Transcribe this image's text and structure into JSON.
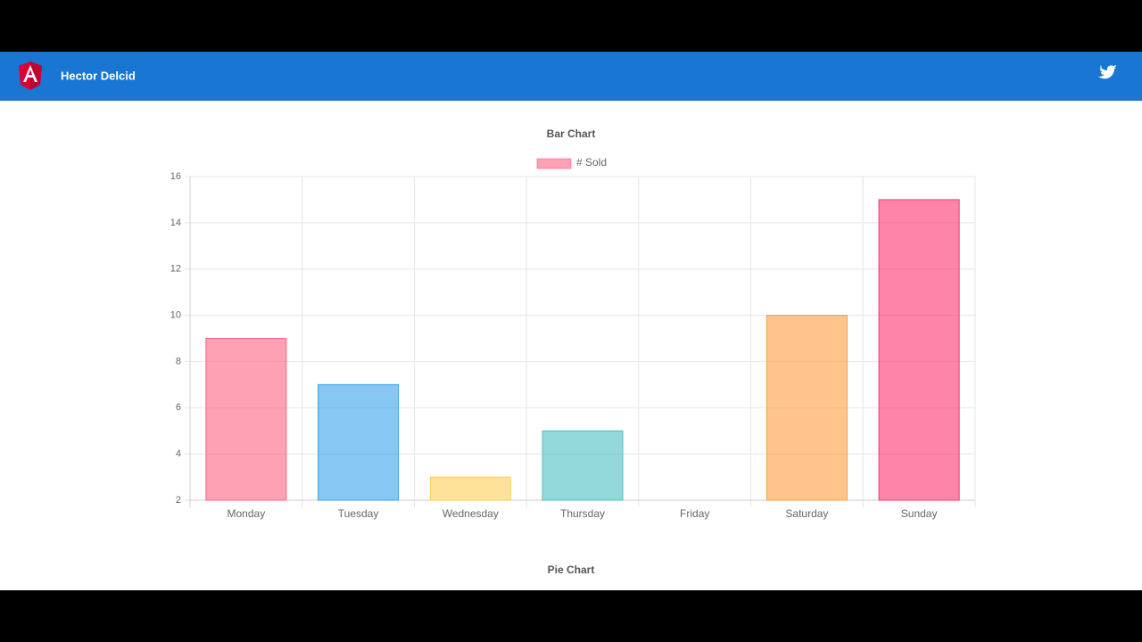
{
  "header": {
    "title": "Hector Delcid"
  },
  "chart_data": [
    {
      "type": "bar",
      "title": "Bar Chart",
      "categories": [
        "Monday",
        "Tuesday",
        "Wednesday",
        "Thursday",
        "Friday",
        "Saturday",
        "Sunday"
      ],
      "series": [
        {
          "name": "# Sold",
          "colors": [
            "rgba(255,99,132,0.6)",
            "rgba(54,162,235,0.6)",
            "rgba(255,206,86,0.6)",
            "rgba(75,192,192,0.6)",
            "rgba(153,102,255,0.6)",
            "rgba(255,159,64,0.6)",
            "rgba(255,51,110,0.6)"
          ],
          "values": [
            9,
            7,
            3,
            5,
            2,
            10,
            15
          ]
        }
      ],
      "ylim": [
        2,
        16
      ],
      "yticks": [
        2,
        4,
        6,
        8,
        10,
        12,
        14,
        16
      ],
      "grid": true
    },
    {
      "type": "pie",
      "title": "Pie Chart"
    }
  ]
}
